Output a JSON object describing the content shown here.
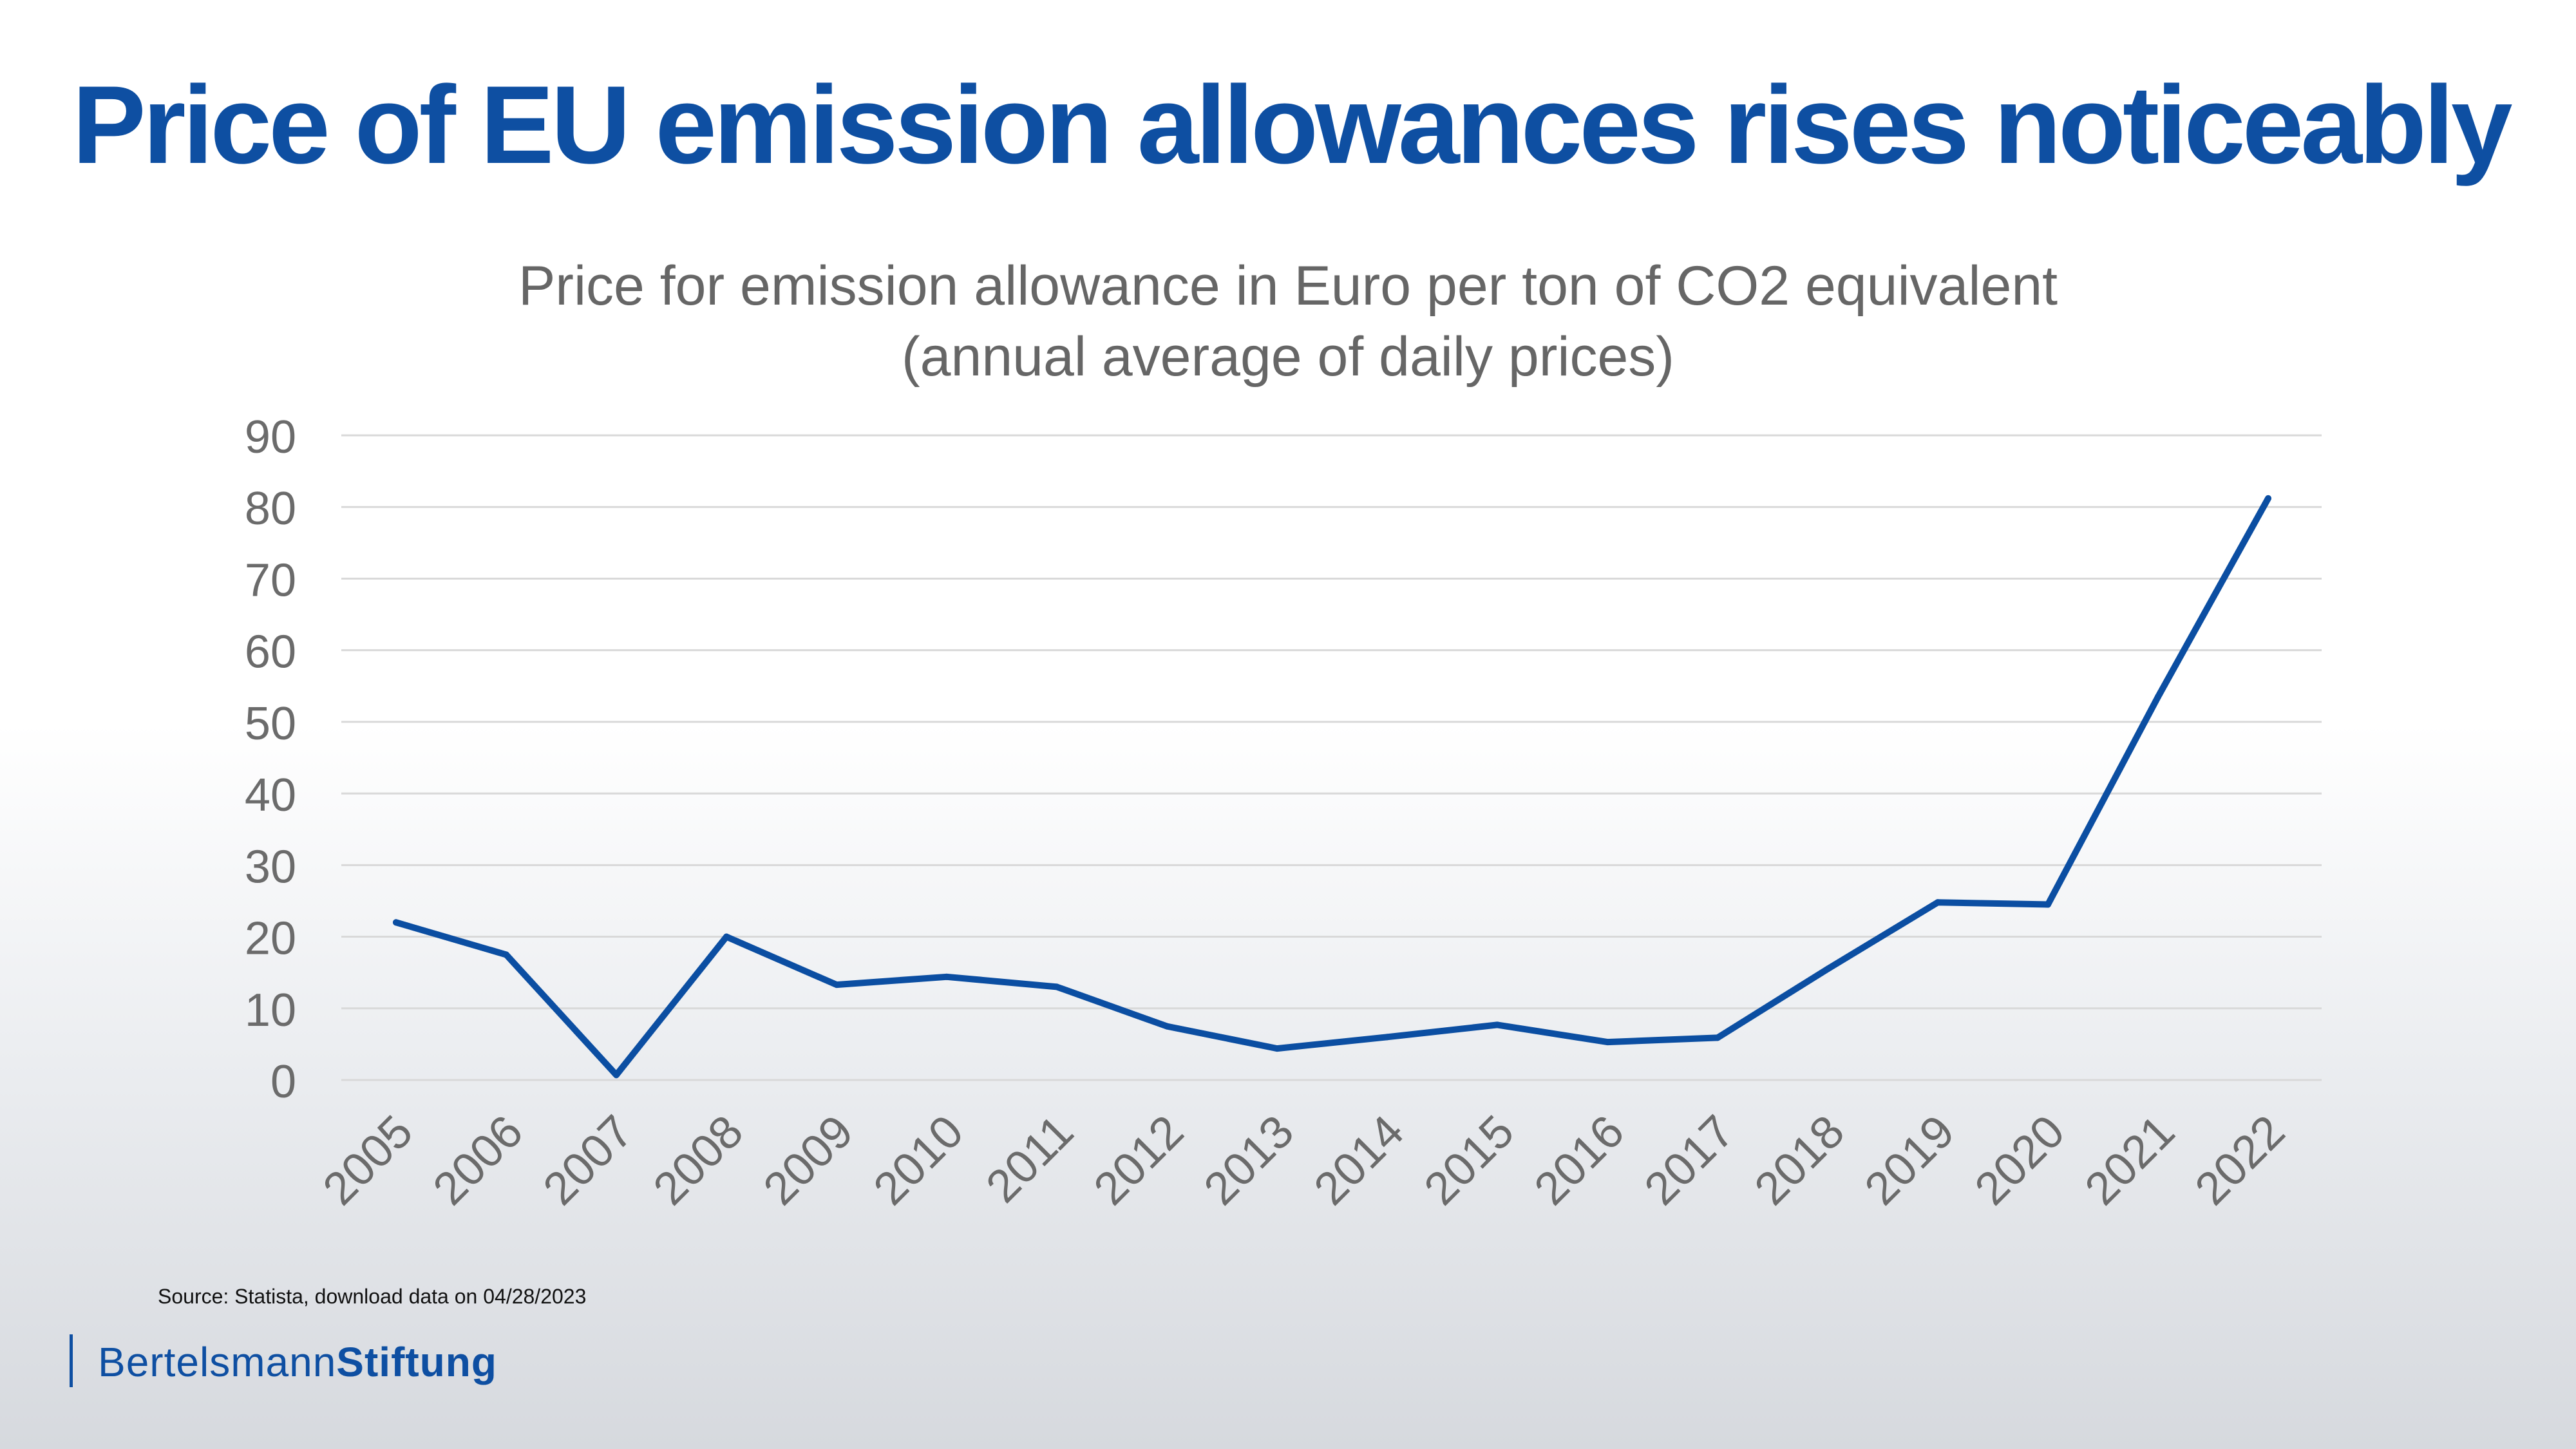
{
  "headline": "Price of EU emission allowances rises noticeably",
  "source": "Source: Statista, download data on 04/28/2023",
  "brand": {
    "part1": "Bertelsmann",
    "part2": "Stiftung"
  },
  "colors": {
    "brand_blue": "#0e4fa2",
    "line": "#0b4ea2",
    "axis_text": "#6b6b6b",
    "grid": "#d9d9d9"
  },
  "chart_data": {
    "type": "line",
    "title": "Price for emission allowance in Euro per ton of CO2 equivalent",
    "subtitle": "(annual average of daily prices)",
    "xlabel": "",
    "ylabel": "",
    "categories": [
      "2005",
      "2006",
      "2007",
      "2008",
      "2009",
      "2010",
      "2011",
      "2012",
      "2013",
      "2014",
      "2015",
      "2016",
      "2017",
      "2018",
      "2019",
      "2020",
      "2021",
      "2022"
    ],
    "series": [
      {
        "values": [
          22,
          17.5,
          0.7,
          20,
          13.3,
          14.4,
          13,
          7.5,
          4.4,
          6,
          7.7,
          5.3,
          5.9,
          15.5,
          24.8,
          24.5,
          53.5,
          81.2
        ]
      }
    ],
    "ylim": [
      0,
      90
    ],
    "yticks": [
      0,
      10,
      20,
      30,
      40,
      50,
      60,
      70,
      80,
      90
    ],
    "grid": "horizontal",
    "legend": "none"
  }
}
